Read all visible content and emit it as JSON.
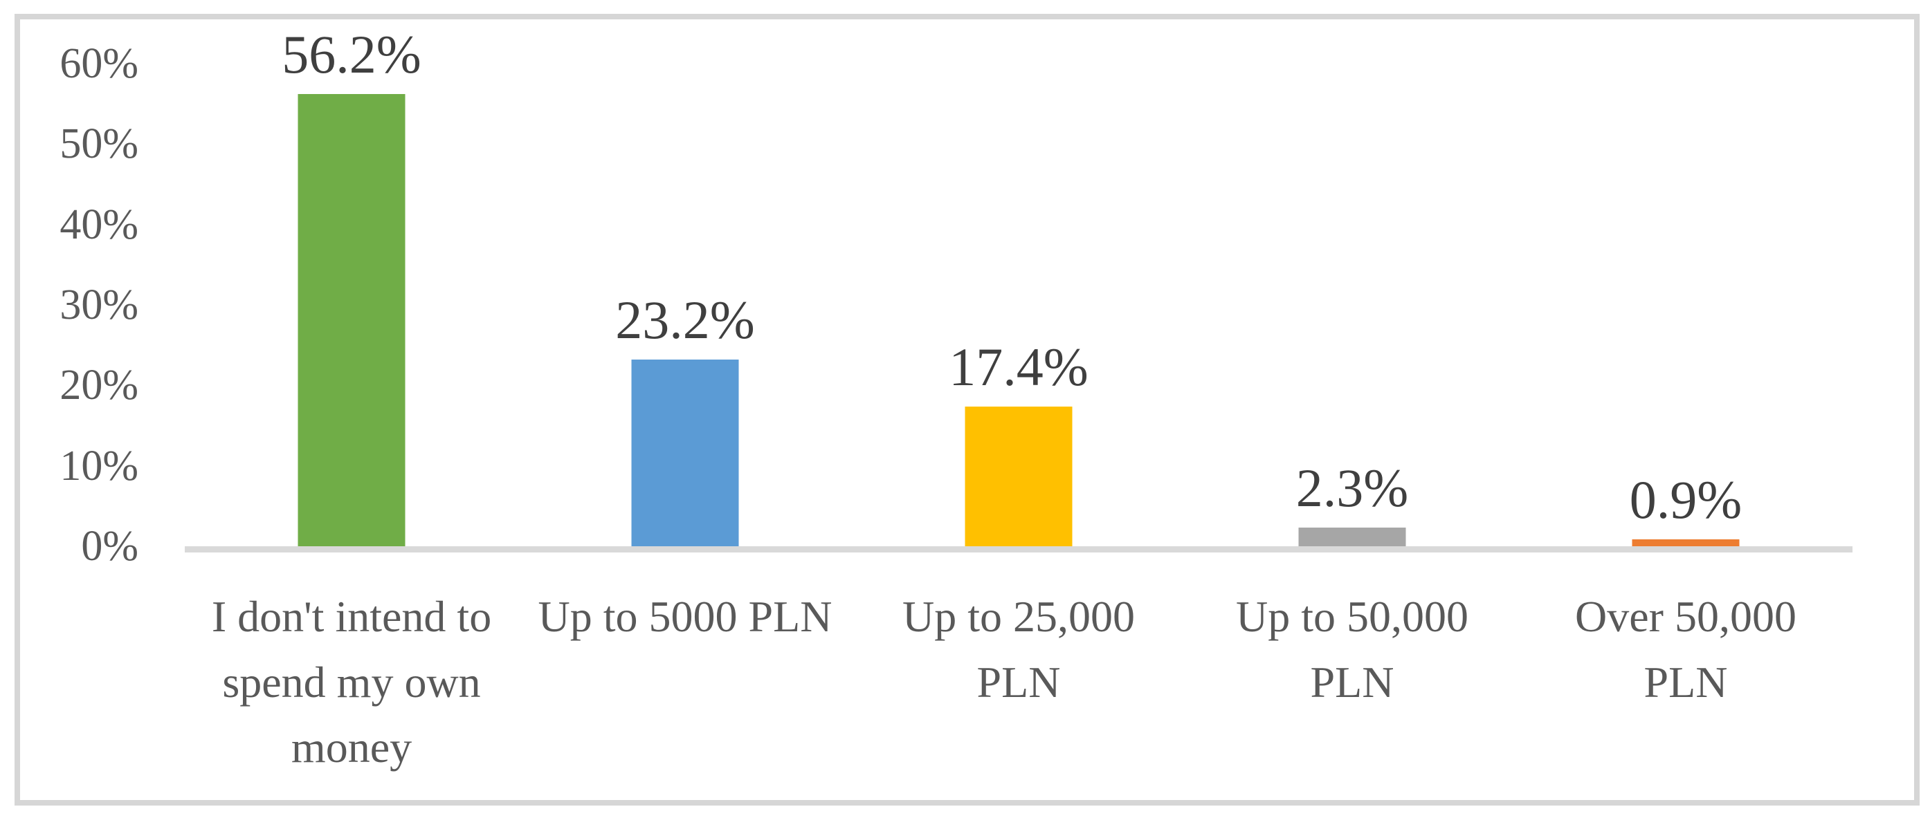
{
  "figure": {
    "background_color": "#FFFFFF",
    "border_color": "#D6D6D6"
  },
  "chart_data": {
    "type": "bar",
    "title": "",
    "xlabel": "",
    "ylabel": "",
    "categories": [
      "I don't intend to\nspend my own\nmoney",
      "Up to 5000 PLN",
      "Up to 25,000\nPLN",
      "Up to 50,000\nPLN",
      "Over 50,000\nPLN"
    ],
    "values": [
      56.2,
      23.2,
      17.4,
      2.3,
      0.9
    ],
    "value_labels": [
      "56.2%",
      "23.2%",
      "17.4%",
      "2.3%",
      "0.9%"
    ],
    "bar_colors": [
      "#70AD47",
      "#5B9BD5",
      "#FFC000",
      "#A6A6A6",
      "#ED7D31"
    ],
    "ylim": [
      0,
      60
    ],
    "yticks": [
      0,
      10,
      20,
      30,
      40,
      50,
      60
    ],
    "ytick_labels": [
      "0%",
      "10%",
      "20%",
      "30%",
      "40%",
      "50%",
      "60%"
    ],
    "grid": false,
    "legend": "none",
    "axis_line_color": "#D9D9D9",
    "tick_label_color": "#595959",
    "data_label_color": "#3F3F3F",
    "category_label_color": "#595959"
  }
}
